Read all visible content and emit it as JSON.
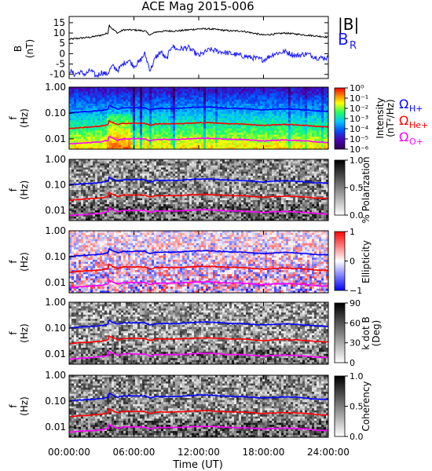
{
  "chart_data": {
    "type": "heatmap",
    "title": "ACE Mag 2015-006",
    "xlabel": "Time (UT)",
    "x_ticks": [
      "00:00:00",
      "06:00:00",
      "12:00:00",
      "18:00:00",
      "24:00:00"
    ],
    "x_range_hours": [
      0,
      24
    ],
    "field_panel": {
      "ylabel": "B\n(nT)",
      "ylim": [
        -12,
        18
      ],
      "y_ticks": [
        "15",
        "10",
        "5",
        "0",
        "-5",
        "-10"
      ],
      "legend": [
        "|B|",
        "B_R"
      ],
      "series": [
        {
          "name": "|B|",
          "color": "#000000",
          "x": [
            0,
            1,
            2,
            3,
            3.6,
            3.7,
            4,
            4.5,
            5,
            6,
            7,
            7.5,
            8,
            9,
            10,
            11,
            12,
            13,
            14,
            15,
            16,
            17,
            18,
            19,
            20,
            21,
            22,
            23,
            24
          ],
          "values": [
            7,
            7.5,
            8,
            9,
            10,
            14,
            12,
            10,
            11.5,
            11.5,
            11,
            9,
            10.5,
            11,
            11,
            11.5,
            12,
            12,
            11.5,
            11,
            11,
            10,
            9,
            9.5,
            10,
            9.5,
            9,
            8.5,
            8
          ]
        },
        {
          "name": "B_R",
          "color": "#1a1aff",
          "x": [
            0,
            0.5,
            1,
            1.5,
            2,
            2.5,
            3,
            3.5,
            4,
            4.5,
            5,
            5.5,
            6,
            6.5,
            7,
            7.5,
            8,
            8.5,
            9,
            9.5,
            10,
            11,
            12,
            13,
            14,
            15,
            16,
            17,
            18,
            19,
            20,
            21,
            22,
            23,
            24
          ],
          "values": [
            -8,
            -10,
            -9,
            -10,
            -8,
            -11,
            -9,
            -10,
            -6,
            -8,
            -5,
            -3,
            -6,
            -4,
            0,
            -8,
            -2,
            1,
            -3,
            4,
            2,
            3,
            -1,
            2,
            1,
            0,
            -1,
            -2,
            -3,
            0,
            1,
            -1,
            0,
            -2,
            -2
          ]
        }
      ]
    },
    "spectral_panels": [
      {
        "name": "Intensity",
        "colorbar_label": "Intensity\n(nT²/Hz)",
        "colorbar_ticks": [
          "10⁰",
          "10⁻¹",
          "10⁻²",
          "10⁻³",
          "10⁻⁴",
          "10⁻⁵",
          "10⁻⁶"
        ],
        "colormap": "rainbow"
      },
      {
        "name": "% Polarization",
        "colorbar_label": "% Polarization",
        "colorbar_ticks": [
          "1.0",
          "0.5",
          "0.0"
        ],
        "colormap": "gray"
      },
      {
        "name": "Ellipticity",
        "colorbar_label": "Ellipticity",
        "colorbar_ticks": [
          "1",
          "0",
          "−1"
        ],
        "colormap": "blue-white-red"
      },
      {
        "name": "k dot B",
        "colorbar_label": "k dot B\n(Deg)",
        "colorbar_ticks": [
          "90",
          "60",
          "30",
          "0"
        ],
        "colormap": "gray"
      },
      {
        "name": "Coherency",
        "colorbar_label": "Coherency",
        "colorbar_ticks": [
          "1.0",
          "0.5",
          "0.0"
        ],
        "colormap": "gray"
      }
    ],
    "freq_axis": {
      "ylabel": "f\n(Hz)",
      "scale": "log",
      "ylim": [
        0.004,
        1.0
      ],
      "y_ticks": [
        "1.00",
        "0.10",
        "0.01"
      ]
    },
    "gyrofrequency_legend": [
      {
        "label": "ΩH+",
        "color": "#0000ff"
      },
      {
        "label": "ΩHe+",
        "color": "#ff0000"
      },
      {
        "label": "ΩO+",
        "color": "#ff00ff"
      }
    ],
    "gyrofrequency_lines": {
      "x": [
        0,
        1,
        2,
        3,
        3.6,
        3.7,
        4,
        4.5,
        5,
        6,
        7,
        7.5,
        8,
        9,
        10,
        11,
        12,
        13,
        14,
        15,
        16,
        17,
        18,
        19,
        20,
        21,
        22,
        23,
        24
      ],
      "H+": [
        0.1,
        0.11,
        0.115,
        0.125,
        0.14,
        0.2,
        0.17,
        0.14,
        0.16,
        0.16,
        0.16,
        0.13,
        0.15,
        0.15,
        0.15,
        0.16,
        0.17,
        0.17,
        0.16,
        0.15,
        0.15,
        0.14,
        0.13,
        0.14,
        0.145,
        0.14,
        0.13,
        0.12,
        0.115
      ],
      "He+": [
        0.025,
        0.027,
        0.029,
        0.031,
        0.035,
        0.05,
        0.043,
        0.035,
        0.04,
        0.04,
        0.04,
        0.033,
        0.038,
        0.038,
        0.038,
        0.04,
        0.042,
        0.042,
        0.04,
        0.038,
        0.038,
        0.035,
        0.033,
        0.035,
        0.036,
        0.035,
        0.033,
        0.03,
        0.029
      ],
      "O+": [
        0.0063,
        0.0068,
        0.0072,
        0.0078,
        0.0088,
        0.0125,
        0.0108,
        0.0088,
        0.01,
        0.01,
        0.01,
        0.0083,
        0.0095,
        0.0095,
        0.0095,
        0.01,
        0.0105,
        0.0105,
        0.01,
        0.0095,
        0.0095,
        0.0088,
        0.0083,
        0.0088,
        0.009,
        0.0088,
        0.0083,
        0.0075,
        0.0072
      ]
    }
  }
}
